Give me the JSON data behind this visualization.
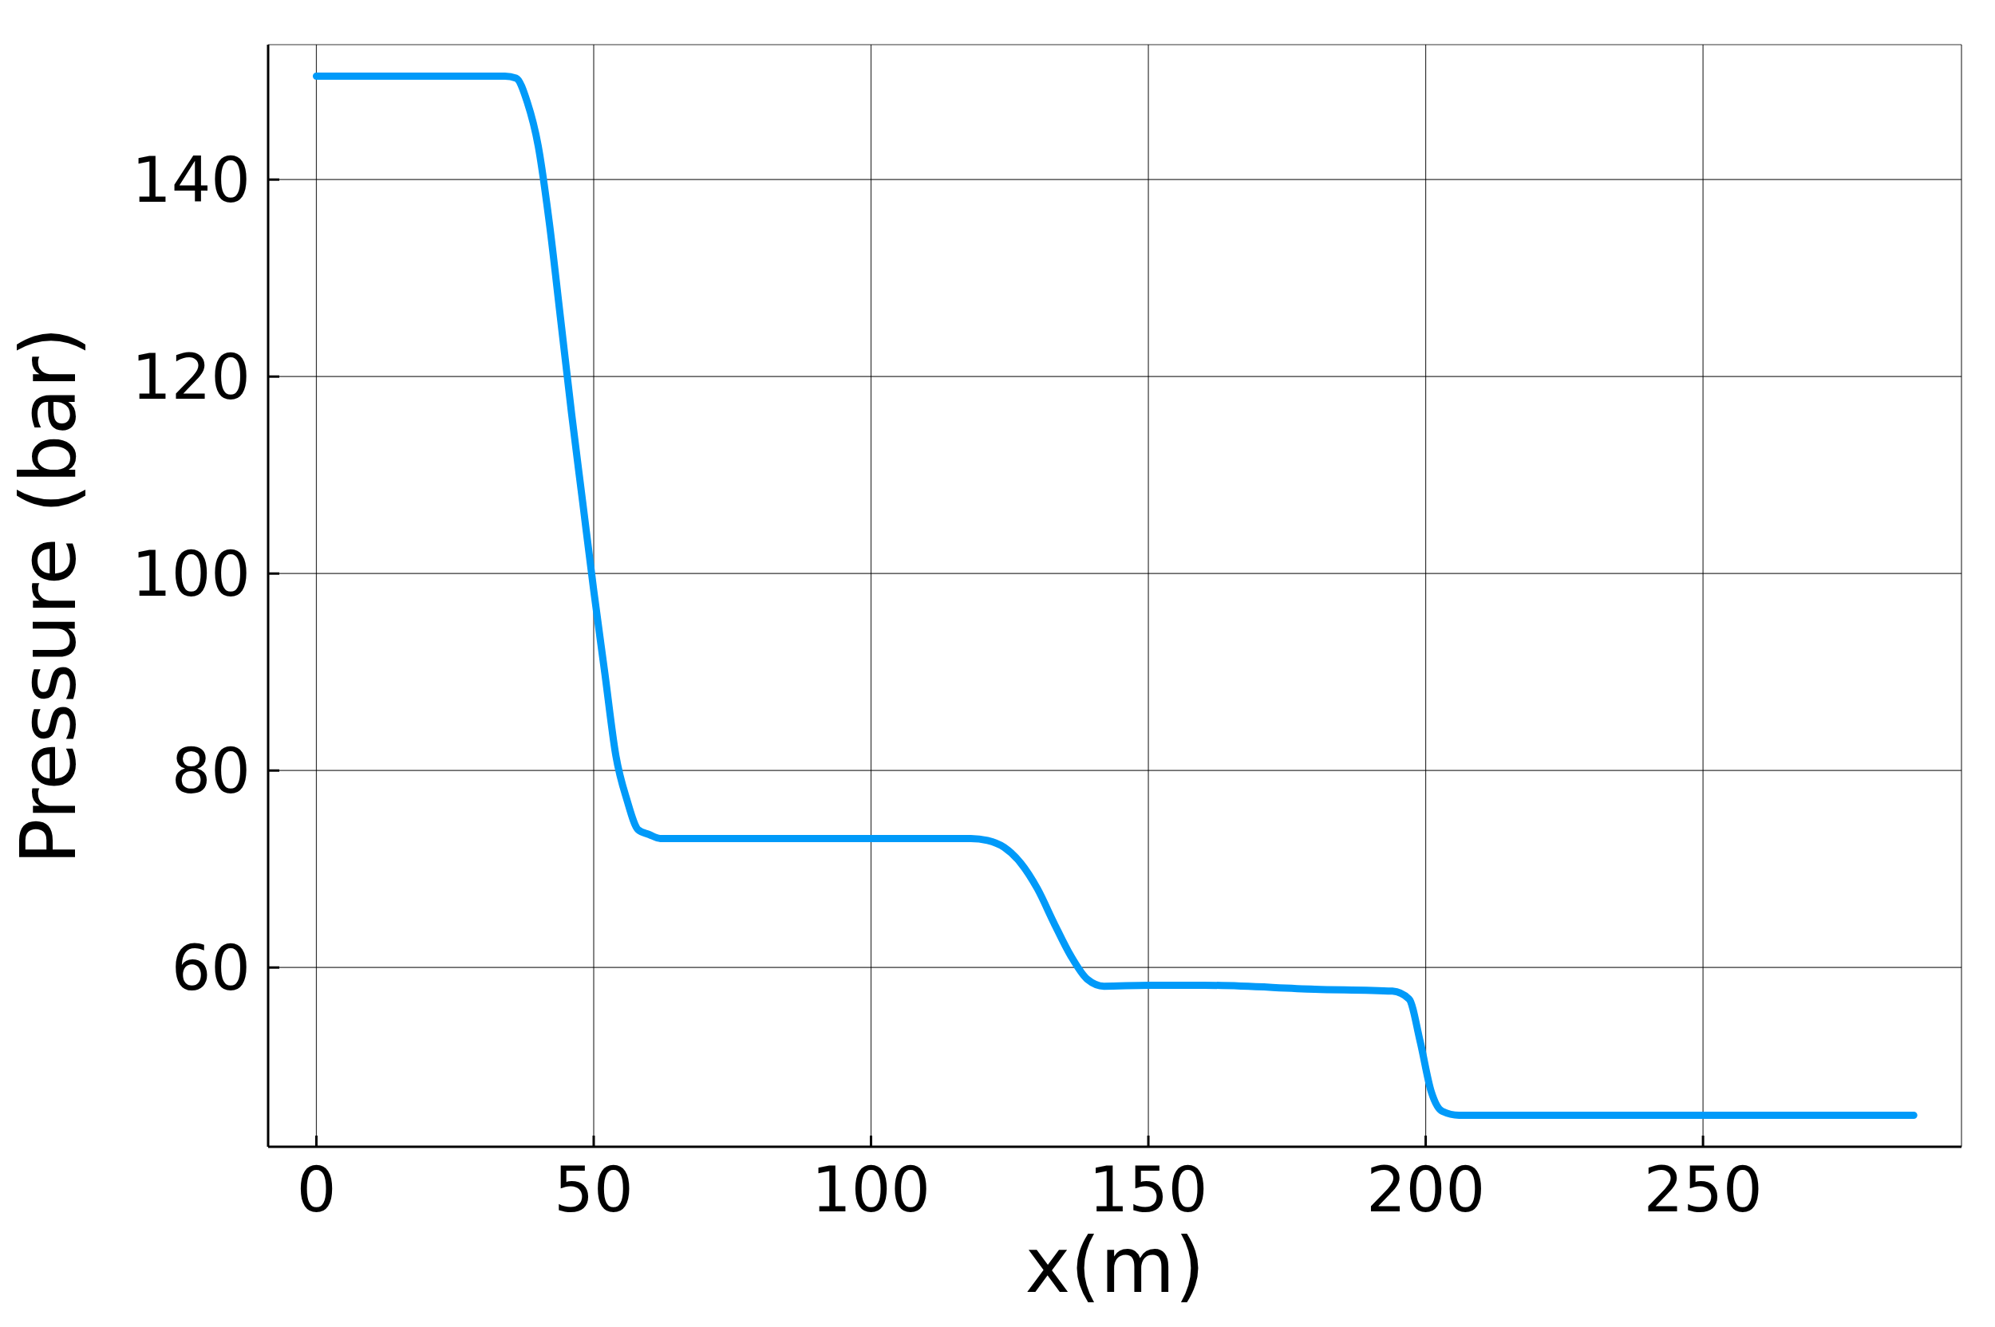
{
  "chart_data": {
    "type": "line",
    "xlabel": "x(m)",
    "ylabel": "Pressure (bar)",
    "xlim": [
      -8.7,
      296.6
    ],
    "xticks": [
      0,
      50,
      100,
      150,
      200,
      250
    ],
    "ylim": [
      41.8,
      153.7
    ],
    "yticks": [
      60,
      80,
      100,
      120,
      140
    ],
    "grid": true,
    "marker": "none",
    "line_style": "solid",
    "series": [
      {
        "color": "#009af9",
        "x": [
          0,
          34,
          36,
          38,
          40,
          42,
          44,
          46,
          48,
          50,
          52,
          54,
          56,
          58,
          60,
          62,
          70,
          118,
          121,
          124,
          127,
          130,
          133,
          136,
          139,
          142,
          150,
          160,
          180,
          194,
          197,
          199,
          201,
          203,
          206,
          288
        ],
        "values": [
          150.5,
          150.5,
          150.3,
          147.9,
          143.4,
          135.6,
          126,
          116.3,
          107.3,
          98.3,
          89.9,
          81.5,
          77,
          74,
          73.5,
          73.1,
          73.1,
          73.1,
          72.9,
          72.2,
          70.6,
          68,
          64.5,
          61.2,
          58.8,
          58.1,
          58.2,
          58.2,
          57.8,
          57.6,
          56.8,
          52.5,
          47.4,
          45.4,
          45,
          45
        ]
      }
    ]
  }
}
